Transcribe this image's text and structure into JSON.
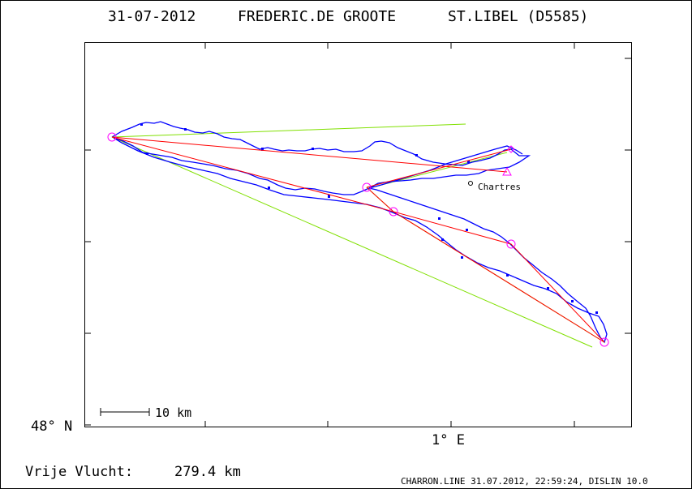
{
  "header": {
    "date": "31-07-2012",
    "pilot": "FREDERIC.DE GROOTE",
    "glider": "ST.LIBEL (D5585)"
  },
  "map": {
    "lat_label": "48° N",
    "lon_label": "1° E",
    "scale_label": "10 km",
    "town_label": "Chartres"
  },
  "footer": {
    "distance_label": "Vrije Vlucht:",
    "distance_value": "279.4 km",
    "credit": "CHARRON.LINE 31.07.2012, 22:59:24, DISLIN 10.0"
  },
  "colors": {
    "track": "#0000ff",
    "task_line": "#ff0000",
    "optimized_line": "#80e000",
    "turnpoint": "#ff00ff",
    "frame": "#000000"
  }
}
